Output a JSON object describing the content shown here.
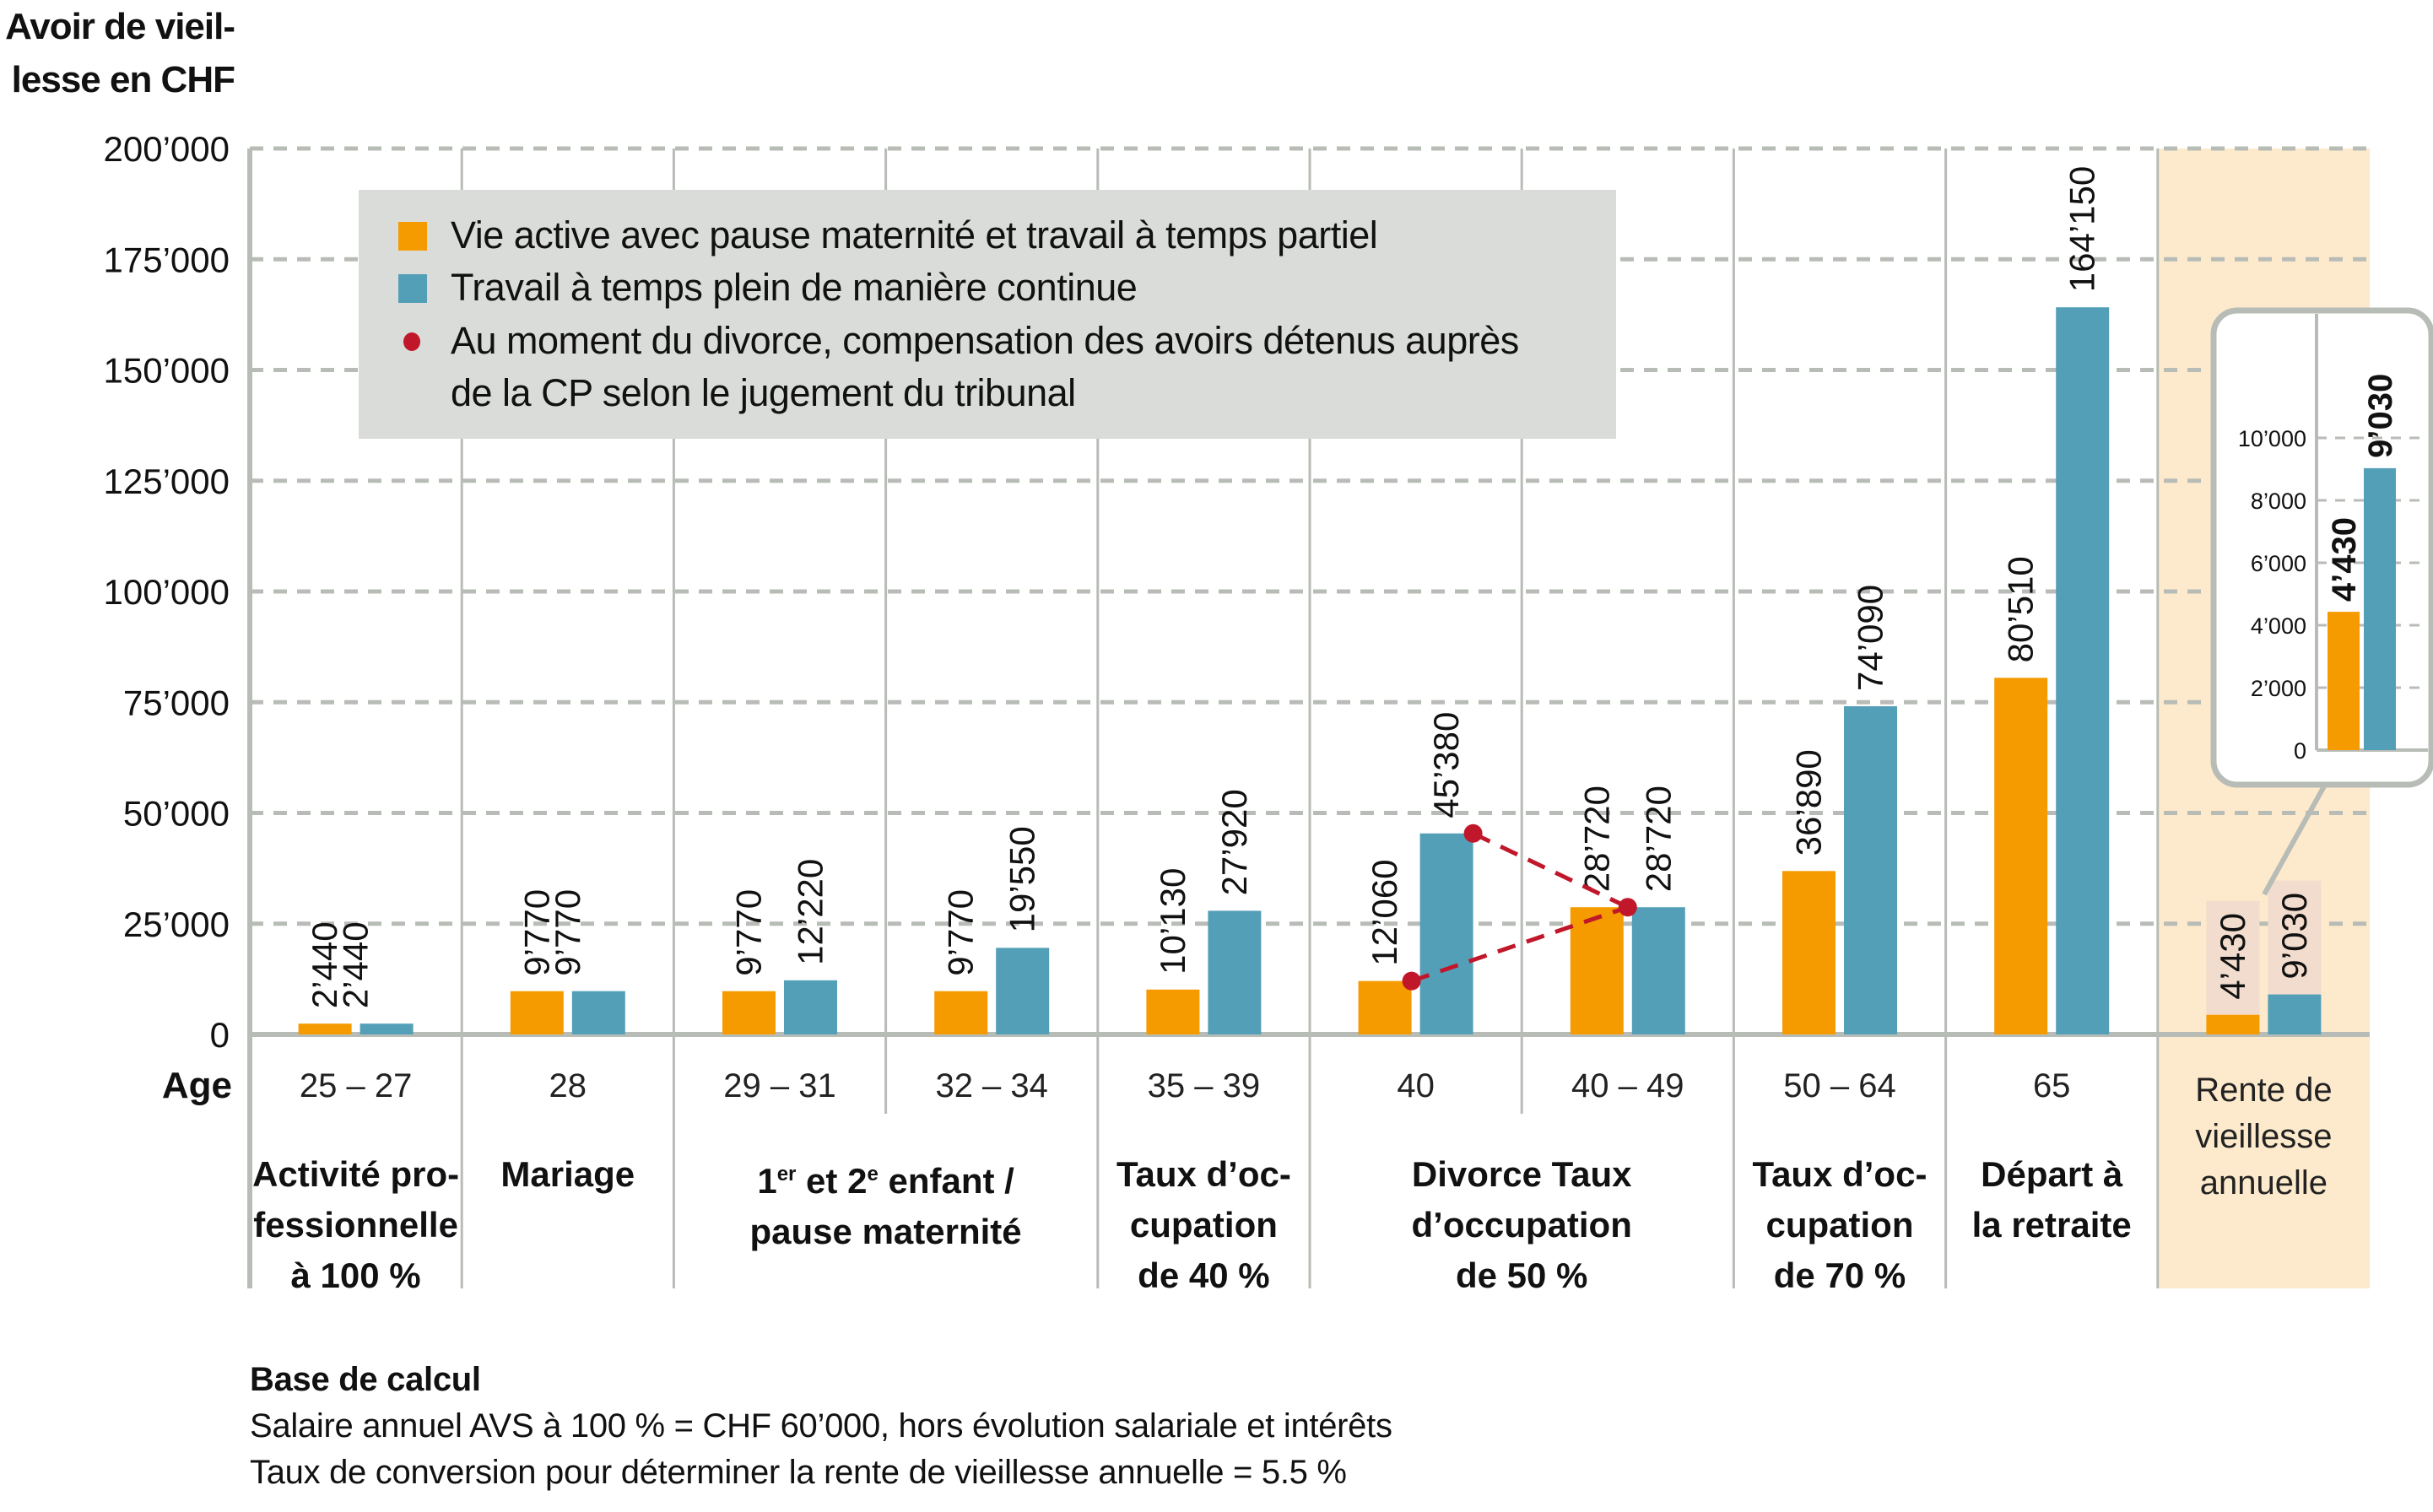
{
  "chart_data": {
    "type": "bar",
    "ylabel": "Avoir de vieil-\nlesse en CHF",
    "ylabel_lines": [
      "Avoir de vieil-",
      "lesse en CHF"
    ],
    "ylim": [
      0,
      200000
    ],
    "yticks": [
      0,
      25000,
      50000,
      75000,
      100000,
      125000,
      150000,
      175000,
      200000
    ],
    "ytick_labels": [
      "0",
      "25’000",
      "50’000",
      "75’000",
      "100’000",
      "125’000",
      "150’000",
      "175’000",
      "200’000"
    ],
    "grid": true,
    "xlabel": "Age",
    "categories": [
      "25 – 27",
      "28",
      "29 – 31",
      "32 – 34",
      "35 – 39",
      "40",
      "40 – 49",
      "50 – 64",
      "65",
      "Rente de vieillesse annuelle"
    ],
    "category_label_lines": [
      [
        "25 – 27"
      ],
      [
        "28"
      ],
      [
        "29 – 31"
      ],
      [
        "32 – 34"
      ],
      [
        "35 – 39"
      ],
      [
        "40"
      ],
      [
        "40 – 49"
      ],
      [
        "50 – 64"
      ],
      [
        "65"
      ],
      [
        "Rente de",
        "vieillesse",
        "annuelle"
      ]
    ],
    "events": [
      {
        "span": [
          0,
          0
        ],
        "lines": [
          "Activité pro-",
          "fessionnelle",
          "à 100 %"
        ]
      },
      {
        "span": [
          1,
          1
        ],
        "lines": [
          "Mariage"
        ]
      },
      {
        "span": [
          2,
          3
        ],
        "lines": [
          "1er et 2e enfant /",
          "pause maternité"
        ]
      },
      {
        "span": [
          4,
          4
        ],
        "lines": [
          "Taux d’oc-",
          "cupation",
          "de 40 %"
        ]
      },
      {
        "span": [
          5,
          6
        ],
        "lines": [
          "Divorce Taux",
          "d’occupation",
          "de 50 %"
        ]
      },
      {
        "span": [
          7,
          7
        ],
        "lines": [
          "Taux d’oc-",
          "cupation",
          "de 70 %"
        ]
      },
      {
        "span": [
          8,
          8
        ],
        "lines": [
          "Départ à",
          "la retraite"
        ]
      }
    ],
    "series": [
      {
        "name": "Vie active avec pause maternité et travail à temps partiel",
        "color": "#f59b00",
        "values": [
          2440,
          9770,
          9770,
          9770,
          10130,
          12060,
          28720,
          36890,
          80510,
          4430
        ],
        "labels": [
          "2’440",
          "9’770",
          "9’770",
          "9’770",
          "10’130",
          "12’060",
          "28’720",
          "36’890",
          "80’510",
          "4’430"
        ]
      },
      {
        "name": "Travail à temps plein de manière continue",
        "color": "#549fb8",
        "values": [
          2440,
          9770,
          12220,
          19550,
          27920,
          45380,
          28720,
          74090,
          164150,
          9030
        ],
        "labels": [
          "",
          "",
          "12’220",
          "19’550",
          "27’920",
          "45’380",
          "28’720",
          "74’090",
          "164’150",
          "9’030"
        ]
      }
    ],
    "single_labels": {
      "0": "2’440",
      "1": "9’770"
    },
    "divorce_compensation": {
      "name": "Au moment du divorce, compensation des avoirs détenus auprès de la CP selon le jugement du tribunal",
      "legend_lines": [
        "Au moment du divorce, compensation des avoirs détenus auprès",
        "de la CP selon le jugement du tribunal"
      ],
      "color": "#c0172a",
      "from": [
        {
          "category": "40",
          "series": 0,
          "value": 12060
        },
        {
          "category": "40",
          "series": 1,
          "value": 45380
        }
      ],
      "to": {
        "category": "40 – 49",
        "value": 28720
      }
    },
    "highlight_category": "Rente de vieillesse annuelle",
    "highlight_color": "#fdeacc",
    "inset": {
      "ylim": [
        0,
        11000
      ],
      "yticks": [
        0,
        2000,
        4000,
        6000,
        8000,
        10000
      ],
      "ytick_labels": [
        "0",
        "2’000",
        "4’000",
        "6’000",
        "8’000",
        "10’000"
      ],
      "values": [
        4430,
        9030
      ],
      "labels": [
        "4’430",
        "9’030"
      ]
    },
    "legend": {
      "placement": "top-left"
    }
  },
  "footer": {
    "heading": "Base de calcul",
    "line1": "Salaire annuel AVS à 100 % = CHF 60’000, hors évolution salariale et intérêts",
    "line2": "Taux de conversion pour déterminer la rente de vieillesse annuelle = 5.5 %"
  },
  "colors": {
    "grid": "#b8bcb6",
    "legend_bg": "#dadcd9",
    "label_bg": "#f2dccd"
  }
}
